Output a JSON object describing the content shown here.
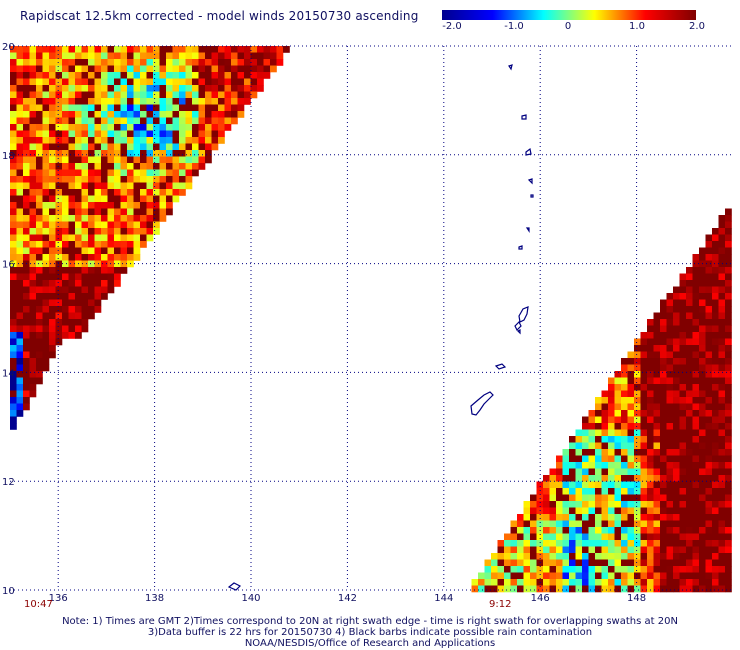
{
  "title": "Rapidscat 12.5km corrected - model winds 20150730 ascending",
  "colorbar": {
    "ticks": [
      "-2.0",
      "-1.0",
      "0",
      "1.0",
      "2.0"
    ],
    "min": -2.0,
    "max": 2.0,
    "colors": [
      "#00008f",
      "#0000ff",
      "#00ffff",
      "#ffff00",
      "#ff0000",
      "#800000"
    ]
  },
  "map": {
    "lon_range": [
      135,
      150
    ],
    "lat_range": [
      10,
      20
    ],
    "lon_ticks": [
      "136",
      "138",
      "140",
      "142",
      "144",
      "146",
      "148"
    ],
    "lat_ticks": [
      "20",
      "18",
      "16",
      "14",
      "12",
      "10"
    ],
    "grid": "dotted",
    "coastline_color": "#000080"
  },
  "swath_times": {
    "left": "10:47",
    "right": "9:12"
  },
  "footnotes": {
    "line1": "Note: 1) Times are GMT 2)Times correspond to 20N at right swath edge - time is right swath for overlapping swaths at 20N",
    "line2": "3)Data buffer is 22 hrs for 20150730 4) Black barbs indicate possible rain contamination",
    "line3": "NOAA/NESDIS/Office of Research and Applications"
  }
}
